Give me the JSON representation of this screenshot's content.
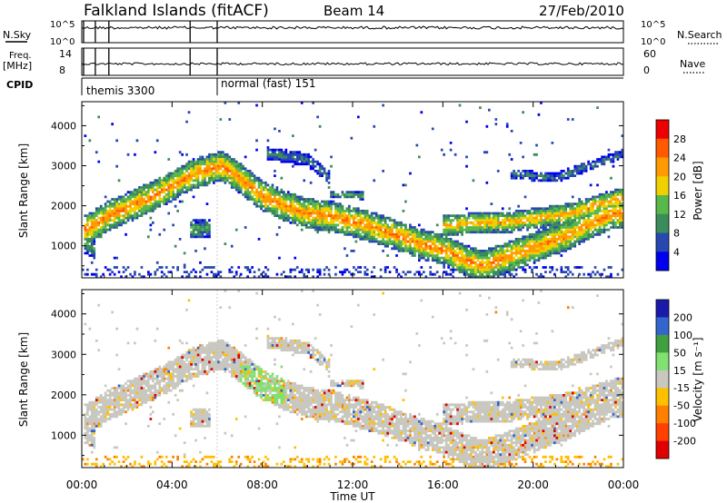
{
  "header": {
    "station": "Falkland Islands (fitACF)",
    "beam": "Beam 14",
    "date": "27/Feb/2010"
  },
  "status_panels": {
    "nsky": {
      "label": "N.Sky",
      "right_label": "N.Search",
      "left_ticks": [
        "10^5",
        "10^0"
      ],
      "right_ticks": [
        "10^5",
        "10^0"
      ]
    },
    "freq": {
      "label_lines": [
        "Freq.",
        "[MHz]"
      ],
      "right_label": "Nave",
      "left_ticks": [
        "14",
        "8"
      ],
      "right_ticks": [
        "60",
        "0"
      ]
    },
    "cpid": {
      "label": "CPID",
      "segments": [
        {
          "name": "themis 3300",
          "start_hour": 0.0,
          "end_hour": 6.0
        },
        {
          "name": "normal (fast) 151",
          "start_hour": 6.0,
          "end_hour": 24.0
        }
      ]
    },
    "marker_hours": [
      0.08,
      0.6,
      1.2,
      4.8,
      6.0
    ]
  },
  "chart_data": [
    {
      "type": "heatmap",
      "name": "power",
      "ylabel": "Slant Range [km]",
      "xlabel": "Time UT",
      "xlim": [
        0,
        24
      ],
      "ylim": [
        200,
        4600
      ],
      "x_ticks": [
        "00:00",
        "04:00",
        "08:00",
        "12:00",
        "16:00",
        "20:00",
        "00:00"
      ],
      "y_ticks": [
        1000,
        2000,
        3000,
        4000
      ],
      "colorbar": {
        "label": "Power [dB]",
        "levels": [
          4,
          8,
          12,
          16,
          20,
          24,
          28
        ],
        "colors": [
          "#0000ee",
          "#2848b0",
          "#3a8c5a",
          "#58b84a",
          "#f0d000",
          "#ff9a00",
          "#ff5a00",
          "#ee0000"
        ]
      },
      "bands": [
        {
          "points": [
            [
              0.1,
              1400
            ],
            [
              0.5,
              1500
            ],
            [
              1.2,
              1750
            ],
            [
              2.0,
              1950
            ],
            [
              3.0,
              2200
            ],
            [
              4.0,
              2500
            ],
            [
              5.0,
              2800
            ],
            [
              6.2,
              3000
            ],
            [
              7.0,
              2700
            ],
            [
              8.0,
              2250
            ],
            [
              9.0,
              2000
            ],
            [
              10.0,
              1800
            ],
            [
              11.0,
              1750
            ],
            [
              12.0,
              1600
            ],
            [
              13.0,
              1450
            ],
            [
              14.0,
              1250
            ],
            [
              15.0,
              1050
            ],
            [
              16.0,
              900
            ],
            [
              17.0,
              650
            ],
            [
              17.8,
              500
            ],
            [
              18.5,
              650
            ],
            [
              19.5,
              850
            ],
            [
              20.5,
              1050
            ],
            [
              21.5,
              1250
            ],
            [
              22.5,
              1550
            ],
            [
              23.5,
              1800
            ],
            [
              24.0,
              1800
            ]
          ],
          "width": 380,
          "peak": 24
        },
        {
          "points": [
            [
              16.0,
              1500
            ],
            [
              17.0,
              1550
            ],
            [
              18.0,
              1580
            ],
            [
              19.0,
              1600
            ],
            [
              20.0,
              1680
            ],
            [
              21.0,
              1750
            ],
            [
              22.0,
              1850
            ],
            [
              23.0,
              2050
            ],
            [
              24.0,
              2200
            ]
          ],
          "width": 260,
          "peak": 22
        },
        {
          "points": [
            [
              8.2,
              3300
            ],
            [
              9.0,
              3250
            ],
            [
              10.0,
              3150
            ],
            [
              11.0,
              2700
            ]
          ],
          "width": 160,
          "peak": 9
        },
        {
          "points": [
            [
              4.8,
              1400
            ],
            [
              5.7,
              1450
            ]
          ],
          "width": 230,
          "peak": 13
        },
        {
          "points": [
            [
              11.0,
              2300
            ],
            [
              12.5,
              2250
            ]
          ],
          "width": 90,
          "peak": 13
        },
        {
          "points": [
            [
              0.1,
              1100
            ],
            [
              0.6,
              900
            ]
          ],
          "width": 250,
          "peak": 13
        },
        {
          "points": [
            [
              19.0,
              2800
            ],
            [
              21.0,
              2700
            ],
            [
              22.5,
              3000
            ],
            [
              24.0,
              3300
            ]
          ],
          "width": 120,
          "peak": 9
        }
      ]
    },
    {
      "type": "heatmap",
      "name": "velocity",
      "ylabel": "Slant Range [km]",
      "xlabel": "Time UT",
      "xlim": [
        0,
        24
      ],
      "ylim": [
        200,
        4600
      ],
      "x_ticks": [
        "00:00",
        "04:00",
        "08:00",
        "12:00",
        "16:00",
        "20:00",
        "00:00"
      ],
      "y_ticks": [
        1000,
        2000,
        3000,
        4000
      ],
      "colorbar": {
        "label": "Velocity [m s⁻¹]",
        "levels": [
          "200",
          "100",
          "50",
          "15",
          "-15",
          "-50",
          "-100",
          "-200"
        ],
        "colors": [
          "#1a1aaa",
          "#3366cc",
          "#40a040",
          "#80e070",
          "#c8c8c0",
          "#ffc000",
          "#ff8000",
          "#ff4000",
          "#e00000"
        ]
      }
    }
  ]
}
